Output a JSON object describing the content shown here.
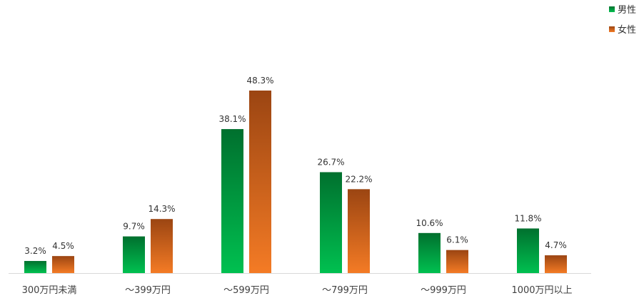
{
  "chart_data": {
    "type": "bar",
    "categories": [
      "300万円未満",
      "～399万円",
      "～599万円",
      "～799万円",
      "～999万円",
      "1000万円以上"
    ],
    "series": [
      {
        "name": "男性",
        "values": [
          3.2,
          9.7,
          38.1,
          26.7,
          10.6,
          11.8
        ],
        "labels": [
          "3.2%",
          "9.7%",
          "38.1%",
          "26.7%",
          "10.6%",
          "11.8%"
        ],
        "color_top": "#00702e",
        "color_bottom": "#00c050"
      },
      {
        "name": "女性",
        "values": [
          4.5,
          14.3,
          48.3,
          22.2,
          6.1,
          4.7
        ],
        "labels": [
          "4.5%",
          "14.3%",
          "48.3%",
          "22.2%",
          "6.1%",
          "4.7%"
        ],
        "color_top": "#9b4512",
        "color_bottom": "#f47b25"
      }
    ],
    "title": "",
    "xlabel": "",
    "ylabel": "",
    "ylim": [
      0,
      48.3
    ],
    "grid": false,
    "legend_position": "top-right",
    "baseline_color": "#d9d9d9"
  }
}
